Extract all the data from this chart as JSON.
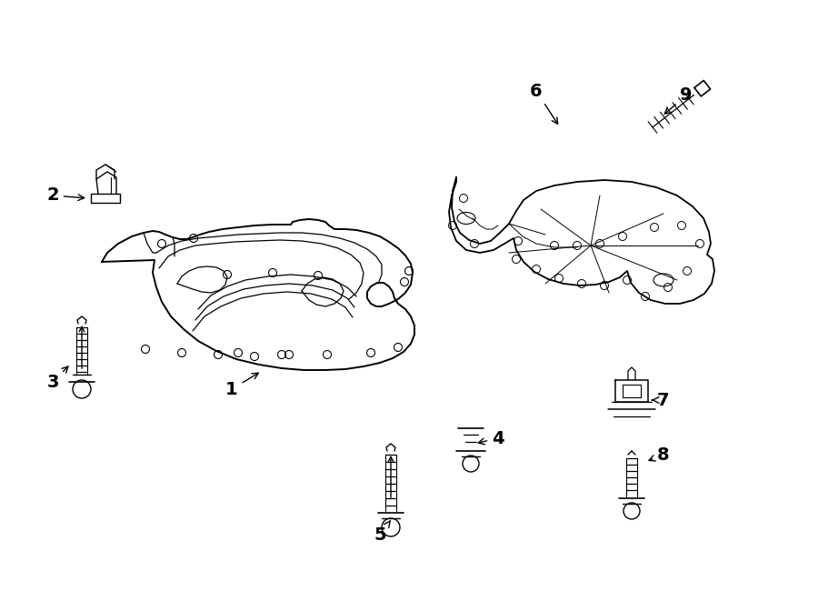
{
  "background_color": "#ffffff",
  "line_color": "#000000",
  "label_color": "#000000",
  "figure_width": 9.0,
  "figure_height": 6.61,
  "dpi": 100
}
